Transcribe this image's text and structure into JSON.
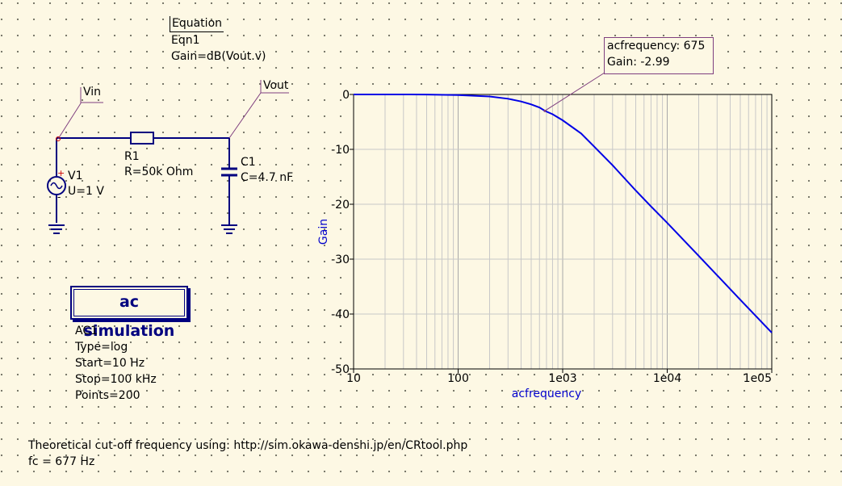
{
  "equation": {
    "title": "Equation",
    "name": "Eqn1",
    "expression": "Gain=dB(Vout.v)"
  },
  "nodes": {
    "vin": "Vin",
    "vout": "Vout"
  },
  "components": {
    "r1": {
      "name": "R1",
      "value": "R=50k Ohm"
    },
    "c1": {
      "name": "C1",
      "value": "C=4.7 nF"
    },
    "v1": {
      "name": "V1",
      "value": "U=1 V"
    }
  },
  "simulation": {
    "title": "ac simulation",
    "name": "AC1",
    "type": "Type=log",
    "start": "Start=10 Hz",
    "stop": "Stop=100 kHz",
    "points": "Points=200"
  },
  "footer": {
    "line1": "Theoretical cut-off frequency using: http://sim.okawa-denshi.jp/en/CRtool.php",
    "line2": "fc = 677 Hz"
  },
  "marker": {
    "line1": "acfrequency: 675",
    "line2": "Gain: -2.99",
    "x": 675,
    "y": -2.99
  },
  "colors": {
    "wire": "#00007f",
    "curve": "#0000e6",
    "axis_label": "#0000cc",
    "marker_border": "#7f3f7f",
    "source_plus": "#cc0000"
  },
  "chart_data": {
    "type": "line",
    "title": "",
    "xlabel": "acfrequency",
    "ylabel": "Gain",
    "x_scale": "log",
    "xlim": [
      10,
      100000
    ],
    "ylim": [
      -50,
      0
    ],
    "x_ticks": [
      10,
      100,
      1000,
      10000,
      100000
    ],
    "x_tick_labels": [
      "10",
      "100",
      "1e03",
      "1e04",
      "1e05"
    ],
    "y_ticks": [
      0,
      -10,
      -20,
      -30,
      -40,
      -50
    ],
    "y_tick_labels": [
      "0",
      "-10",
      "-20",
      "-30",
      "-40",
      "-50"
    ],
    "grid": true,
    "series": [
      {
        "x": [
          10,
          20,
          50,
          100,
          200,
          300,
          400,
          500,
          600,
          677,
          800,
          1000,
          1500,
          2000,
          3000,
          5000,
          7000,
          10000,
          20000,
          50000,
          100000
        ],
        "y": [
          0,
          0,
          -0.02,
          -0.1,
          -0.37,
          -0.78,
          -1.28,
          -1.81,
          -2.38,
          -3.0,
          -3.6,
          -4.7,
          -7.1,
          -9.5,
          -12.9,
          -17.5,
          -20.4,
          -23.4,
          -29.4,
          -37.4,
          -43.4
        ]
      }
    ]
  }
}
